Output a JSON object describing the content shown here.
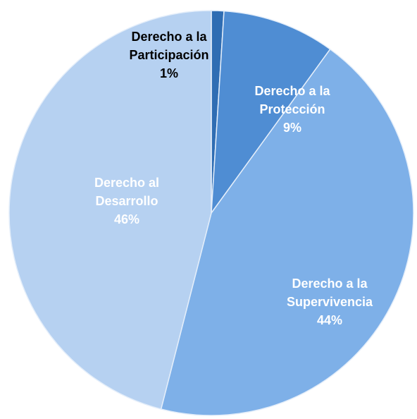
{
  "chart_data": {
    "type": "pie",
    "categories": [
      "Derecho a la Participación",
      "Derecho a la Protección",
      "Derecho a la Supervivencia",
      "Derecho al Desarrollo"
    ],
    "values": [
      1,
      9,
      44,
      46
    ],
    "value_labels": [
      "1%",
      "9%",
      "44%",
      "46%"
    ],
    "colors": [
      "#2f6db3",
      "#4f8dd3",
      "#7eb0e8",
      "#b6d1f1"
    ],
    "label_colors": [
      "#000000",
      "#ffffff",
      "#ffffff",
      "#ffffff"
    ]
  }
}
